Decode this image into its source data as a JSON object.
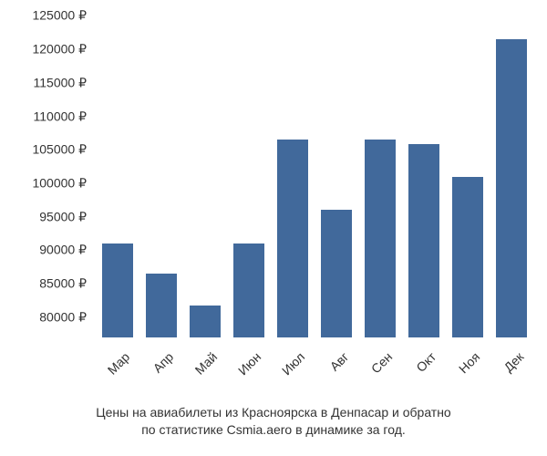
{
  "chart": {
    "type": "bar",
    "categories": [
      "Мар",
      "Апр",
      "Май",
      "Июн",
      "Июл",
      "Авг",
      "Сен",
      "Окт",
      "Ноя",
      "Дек"
    ],
    "values": [
      91000,
      86500,
      81800,
      91000,
      106500,
      96000,
      106500,
      105800,
      101000,
      121500
    ],
    "bar_color": "#41699b",
    "background_color": "#ffffff",
    "ylim_min": 77000,
    "ylim_max": 126000,
    "ytick_start": 80000,
    "ytick_end": 125000,
    "ytick_step": 5000,
    "currency_symbol": "₽",
    "bar_width_ratio": 0.72,
    "tick_fontsize": 14,
    "tick_color": "#333333",
    "x_label_rotation": -45
  },
  "caption": {
    "line1": "Цены на авиабилеты из Красноярска в Денпасар и обратно",
    "line2": "по статистике Csmia.aero в динамике за год.",
    "fontsize": 14,
    "color": "#333333"
  }
}
